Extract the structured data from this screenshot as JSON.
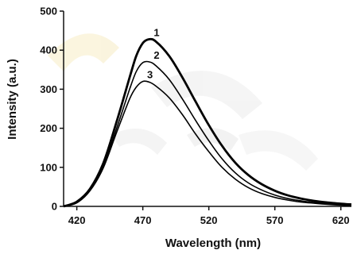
{
  "chart_data": {
    "type": "line",
    "xlabel": "Wavelength (nm)",
    "ylabel": "Intensity (a.u.)",
    "xlim": [
      410,
      628
    ],
    "ylim": [
      0,
      500
    ],
    "x_ticks": [
      420,
      470,
      520,
      570,
      620
    ],
    "y_ticks": [
      0,
      100,
      200,
      300,
      400,
      500
    ],
    "grid": false,
    "series": [
      {
        "name": "1",
        "color": "#000000",
        "x": [
          410,
          420,
          430,
          440,
          450,
          460,
          465,
          470,
          475,
          480,
          490,
          500,
          510,
          520,
          530,
          540,
          550,
          560,
          570,
          580,
          590,
          600,
          610,
          620,
          628
        ],
        "values": [
          0,
          12,
          45,
          110,
          215,
          330,
          385,
          418,
          428,
          422,
          385,
          330,
          268,
          208,
          155,
          112,
          80,
          57,
          40,
          28,
          20,
          14,
          10,
          7,
          5
        ]
      },
      {
        "name": "2",
        "color": "#000000",
        "x": [
          410,
          420,
          430,
          440,
          450,
          460,
          465,
          470,
          475,
          480,
          490,
          500,
          510,
          520,
          530,
          540,
          550,
          560,
          570,
          580,
          590,
          600,
          610,
          620,
          628
        ],
        "values": [
          0,
          10,
          42,
          102,
          198,
          300,
          345,
          368,
          370,
          360,
          325,
          275,
          220,
          168,
          122,
          86,
          60,
          42,
          29,
          20,
          14,
          10,
          7,
          5,
          3
        ]
      },
      {
        "name": "3",
        "color": "#000000",
        "x": [
          410,
          420,
          430,
          440,
          450,
          460,
          465,
          470,
          475,
          480,
          490,
          500,
          510,
          520,
          530,
          540,
          550,
          560,
          570,
          580,
          590,
          600,
          610,
          620,
          628
        ],
        "values": [
          0,
          9,
          40,
          98,
          188,
          275,
          305,
          320,
          318,
          308,
          278,
          235,
          185,
          140,
          100,
          70,
          48,
          33,
          23,
          16,
          11,
          8,
          5,
          3,
          2
        ]
      }
    ]
  }
}
